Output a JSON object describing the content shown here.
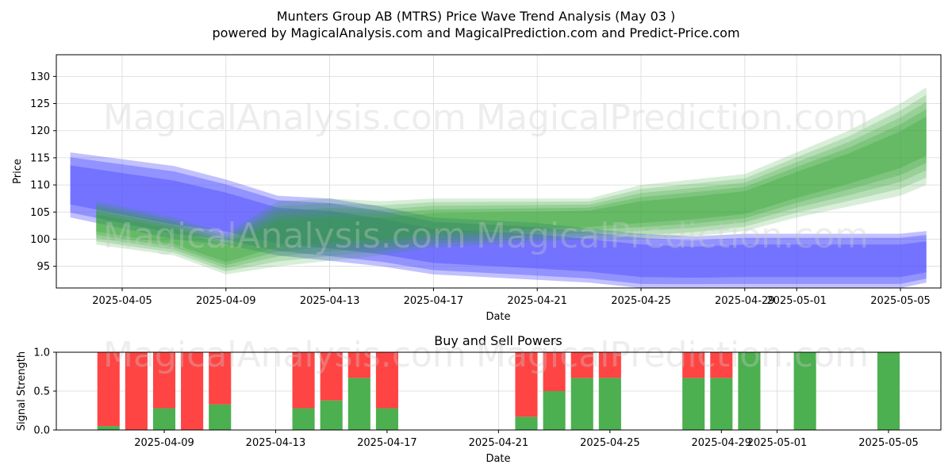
{
  "figure": {
    "title": "Munters Group AB (MTRS) Price Wave Trend Analysis (May 03 )",
    "subtitle": "powered by MagicalAnalysis.com and MagicalPrediction.com and Predict-Price.com",
    "watermarks": [
      "MagicalAnalysis.com",
      "MagicalPrediction.com"
    ]
  },
  "colors": {
    "blue_band": "#4d4dff",
    "green_band": "#2ca02c",
    "buy": "#4caf50",
    "sell": "#ff4444",
    "grid": "#d9d9d9"
  },
  "chart_data": [
    {
      "type": "area",
      "title": "",
      "xlabel": "Date",
      "ylabel": "Price",
      "x_ticks": [
        "2025-04-05",
        "2025-04-09",
        "2025-04-13",
        "2025-04-17",
        "2025-04-21",
        "2025-04-25",
        "2025-04-29",
        "2025-05-01",
        "2025-05-05"
      ],
      "y_ticks": [
        95,
        100,
        105,
        110,
        115,
        120,
        125,
        130
      ],
      "xlim": [
        "2025-04-03",
        "2025-05-06"
      ],
      "ylim": [
        91,
        134
      ],
      "grid": true,
      "series": [
        {
          "color": "blue",
          "x": [
            "2025-04-03",
            "2025-04-07",
            "2025-04-09",
            "2025-04-11",
            "2025-04-13",
            "2025-04-15",
            "2025-04-17",
            "2025-04-19",
            "2025-04-21",
            "2025-04-23",
            "2025-04-25",
            "2025-04-27",
            "2025-04-29",
            "2025-05-01",
            "2025-05-03",
            "2025-05-05",
            "2025-05-06"
          ],
          "upper": [
            116,
            113.5,
            111,
            108,
            107.5,
            106,
            104,
            103.5,
            103,
            102,
            101,
            100.5,
            101,
            101,
            101,
            101,
            101.5
          ],
          "lower": [
            104,
            100,
            99,
            97,
            96,
            95,
            93.5,
            93,
            92.5,
            92,
            91,
            91,
            91,
            91,
            91,
            91,
            92
          ]
        },
        {
          "color": "green",
          "x": [
            "2025-04-04",
            "2025-04-07",
            "2025-04-09",
            "2025-04-11",
            "2025-04-13",
            "2025-04-15",
            "2025-04-17",
            "2025-04-19",
            "2025-04-21",
            "2025-04-23",
            "2025-04-25",
            "2025-04-27",
            "2025-04-29",
            "2025-05-01",
            "2025-05-03",
            "2025-05-05",
            "2025-05-06"
          ],
          "upper": [
            107,
            104,
            101,
            107,
            107.5,
            107,
            107.5,
            107.5,
            107.5,
            107.5,
            110,
            111,
            112,
            116,
            120,
            125,
            128
          ],
          "lower": [
            99,
            97,
            93.5,
            95,
            96,
            97,
            98.5,
            99,
            99.5,
            100,
            100,
            100.5,
            101.5,
            104,
            106,
            108,
            110
          ]
        }
      ]
    },
    {
      "type": "bar",
      "title": "Buy and Sell Powers",
      "xlabel": "Date",
      "ylabel": "Signal Strength",
      "x_ticks": [
        "2025-04-09",
        "2025-04-13",
        "2025-04-17",
        "2025-04-21",
        "2025-04-25",
        "2025-04-29",
        "2025-05-01",
        "2025-05-05"
      ],
      "y_ticks": [
        "0.0",
        "0.5",
        "1.0"
      ],
      "ylim": [
        0,
        1
      ],
      "categories": [
        "2025-04-07",
        "2025-04-08",
        "2025-04-09",
        "2025-04-10",
        "2025-04-11",
        "2025-04-14",
        "2025-04-15",
        "2025-04-16",
        "2025-04-17",
        "2025-04-22",
        "2025-04-23",
        "2025-04-24",
        "2025-04-25",
        "2025-04-28",
        "2025-04-29",
        "2025-04-30",
        "2025-05-02",
        "2025-05-05"
      ],
      "series": [
        {
          "name": "Buy",
          "values": [
            0.05,
            0.0,
            0.28,
            0.0,
            0.33,
            0.28,
            0.38,
            0.67,
            0.28,
            0.17,
            0.5,
            0.67,
            0.67,
            0.67,
            0.67,
            1.0,
            1.0,
            1.0
          ]
        },
        {
          "name": "Sell",
          "values": [
            0.95,
            1.0,
            0.72,
            1.0,
            0.67,
            0.72,
            0.62,
            0.33,
            0.72,
            0.83,
            0.5,
            0.33,
            0.33,
            0.33,
            0.33,
            0.0,
            0.0,
            0.0
          ]
        }
      ]
    }
  ]
}
